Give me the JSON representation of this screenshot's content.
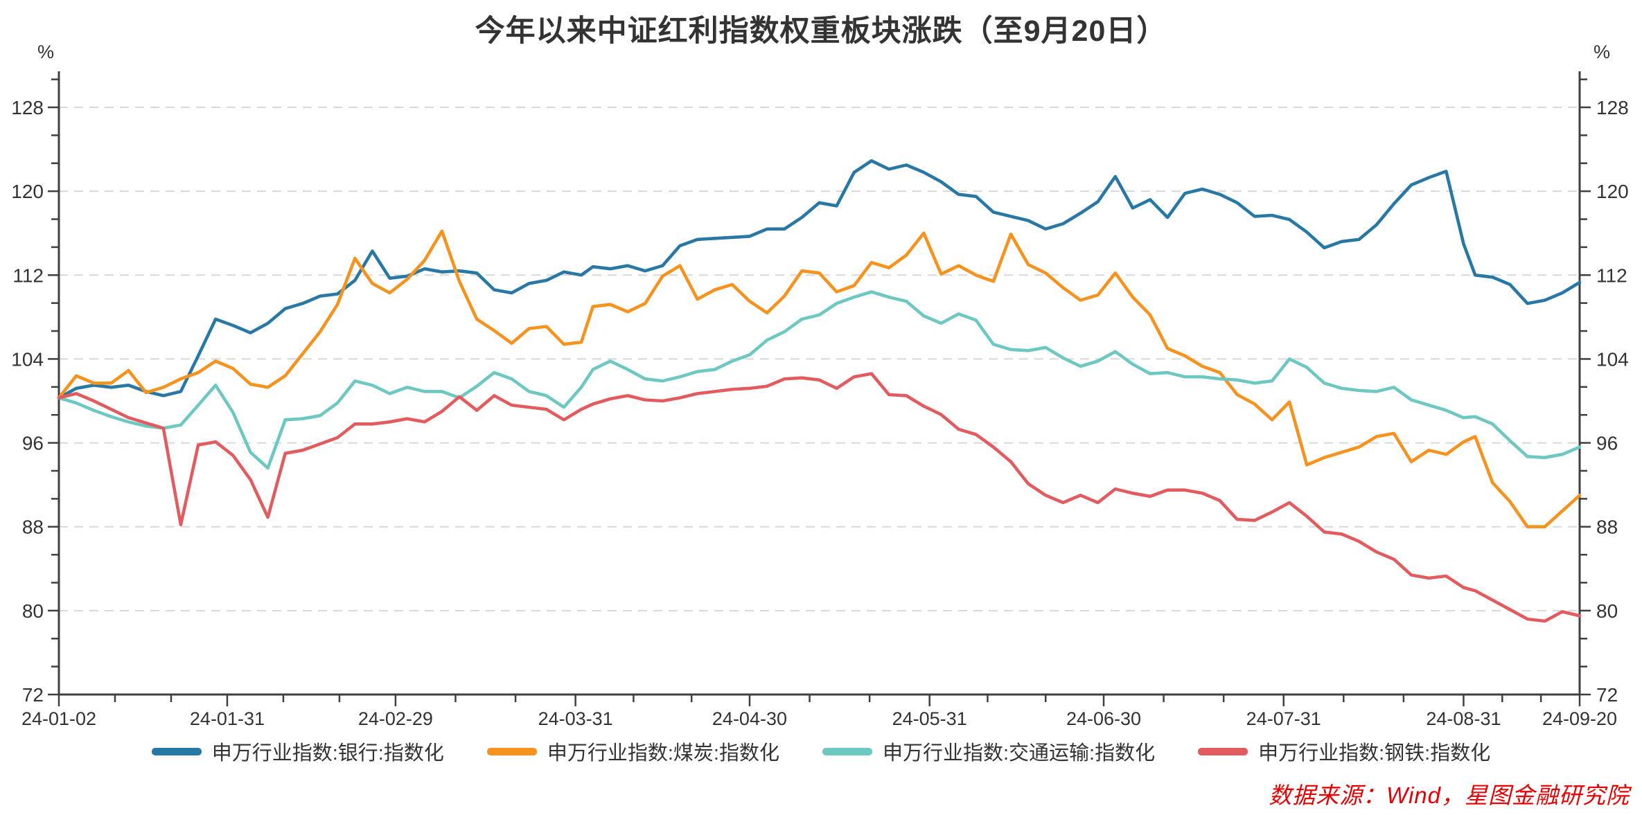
{
  "title": "今年以来中证红利指数权重板块涨跌（至9月20日）",
  "source_note": "数据来源：Wind，星图金融研究院",
  "chart_data": {
    "type": "line",
    "title": "今年以来中证红利指数权重板块涨跌（至9月20日）",
    "ylabel": "%",
    "unit_label": "%",
    "ylim": [
      72,
      131.5
    ],
    "y_ticks": [
      128,
      120,
      112,
      104,
      96,
      88,
      80,
      72
    ],
    "grid": "horizontal-dashed",
    "legend_position": "bottom",
    "x_tick_labels": [
      "24-01-02",
      "24-01-31",
      "24-02-29",
      "24-03-31",
      "24-04-30",
      "24-05-31",
      "24-06-30",
      "24-07-31",
      "24-08-31",
      "24-09-20"
    ],
    "x": [
      "24-01-02",
      "24-01-05",
      "24-01-08",
      "24-01-11",
      "24-01-14",
      "24-01-17",
      "24-01-20",
      "24-01-23",
      "24-01-26",
      "24-01-29",
      "24-02-01",
      "24-02-04",
      "24-02-07",
      "24-02-10",
      "24-02-13",
      "24-02-16",
      "24-02-19",
      "24-02-22",
      "24-02-25",
      "24-02-28",
      "24-03-02",
      "24-03-05",
      "24-03-08",
      "24-03-11",
      "24-03-14",
      "24-03-17",
      "24-03-20",
      "24-03-23",
      "24-03-26",
      "24-03-29",
      "24-04-01",
      "24-04-03",
      "24-04-06",
      "24-04-09",
      "24-04-12",
      "24-04-15",
      "24-04-18",
      "24-04-21",
      "24-04-24",
      "24-04-27",
      "24-04-30",
      "24-05-03",
      "24-05-06",
      "24-05-09",
      "24-05-12",
      "24-05-15",
      "24-05-18",
      "24-05-21",
      "24-05-24",
      "24-05-27",
      "24-05-30",
      "24-06-02",
      "24-06-05",
      "24-06-08",
      "24-06-11",
      "24-06-14",
      "24-06-17",
      "24-06-20",
      "24-06-23",
      "24-06-26",
      "24-06-29",
      "24-07-02",
      "24-07-05",
      "24-07-08",
      "24-07-11",
      "24-07-14",
      "24-07-17",
      "24-07-20",
      "24-07-23",
      "24-07-26",
      "24-07-29",
      "24-08-01",
      "24-08-04",
      "24-08-07",
      "24-08-10",
      "24-08-13",
      "24-08-16",
      "24-08-19",
      "24-08-22",
      "24-08-25",
      "24-08-28",
      "24-08-31",
      "24-09-02",
      "24-09-05",
      "24-09-08",
      "24-09-11",
      "24-09-14",
      "24-09-17",
      "24-09-20"
    ],
    "series": [
      {
        "name": "申万行业指数:银行:指数化",
        "color": "#2878A6",
        "values": [
          100.3,
          101.2,
          101.5,
          101.3,
          101.5,
          100.9,
          100.5,
          100.9,
          104.3,
          107.8,
          107.2,
          106.5,
          107.4,
          108.8,
          109.3,
          110.0,
          110.2,
          111.5,
          114.3,
          111.7,
          111.9,
          112.6,
          112.3,
          112.4,
          112.2,
          110.6,
          110.3,
          111.2,
          111.5,
          112.3,
          112.0,
          112.8,
          112.6,
          112.9,
          112.4,
          112.9,
          114.8,
          115.4,
          115.5,
          115.6,
          115.7,
          116.4,
          116.4,
          117.5,
          118.9,
          118.6,
          121.8,
          122.9,
          122.1,
          122.5,
          121.8,
          120.9,
          119.7,
          119.5,
          118.0,
          117.6,
          117.2,
          116.4,
          116.9,
          117.9,
          119.0,
          121.4,
          118.4,
          119.2,
          117.5,
          119.8,
          120.2,
          119.7,
          118.9,
          117.6,
          117.7,
          117.3,
          116.1,
          114.6,
          115.2,
          115.4,
          116.8,
          118.8,
          120.6,
          121.3,
          121.9,
          115.0,
          112.0,
          111.8,
          111.1,
          109.3,
          109.6,
          110.3,
          111.3
        ]
      },
      {
        "name": "申万行业指数:煤炭:指数化",
        "color": "#F6921E",
        "values": [
          100.3,
          102.4,
          101.7,
          101.7,
          102.9,
          100.8,
          101.3,
          102.1,
          102.7,
          103.8,
          103.1,
          101.6,
          101.3,
          102.4,
          104.5,
          106.6,
          109.2,
          113.6,
          111.2,
          110.3,
          111.6,
          113.4,
          116.2,
          111.4,
          107.8,
          106.7,
          105.5,
          106.9,
          107.1,
          105.4,
          105.6,
          109.0,
          109.2,
          108.5,
          109.3,
          111.9,
          112.9,
          109.7,
          110.6,
          111.1,
          109.5,
          108.4,
          110.0,
          112.4,
          112.2,
          110.4,
          111.0,
          113.2,
          112.7,
          113.9,
          116.0,
          112.1,
          112.9,
          112.0,
          111.4,
          115.9,
          113.0,
          112.2,
          110.8,
          109.6,
          110.1,
          112.2,
          109.9,
          108.2,
          105.0,
          104.3,
          103.3,
          102.7,
          100.6,
          99.7,
          98.2,
          99.9,
          93.9,
          94.6,
          95.1,
          95.6,
          96.6,
          96.9,
          94.2,
          95.3,
          94.9,
          96.1,
          96.6,
          92.2,
          90.4,
          88.0,
          88.0,
          89.5,
          91.0
        ]
      },
      {
        "name": "申万行业指数:交通运输:指数化",
        "color": "#6EC8C2",
        "values": [
          100.3,
          99.8,
          99.1,
          98.5,
          98.0,
          97.6,
          97.4,
          97.7,
          99.6,
          101.5,
          98.9,
          95.1,
          93.6,
          98.2,
          98.3,
          98.6,
          99.8,
          101.9,
          101.5,
          100.7,
          101.3,
          100.9,
          100.9,
          100.3,
          101.4,
          102.7,
          102.1,
          100.9,
          100.5,
          99.4,
          101.3,
          103.0,
          103.8,
          103.0,
          102.1,
          101.9,
          102.3,
          102.8,
          103.0,
          103.8,
          104.4,
          105.8,
          106.6,
          107.8,
          108.2,
          109.3,
          109.9,
          110.4,
          109.9,
          109.5,
          108.1,
          107.4,
          108.3,
          107.7,
          105.4,
          104.9,
          104.8,
          105.1,
          104.1,
          103.3,
          103.8,
          104.7,
          103.5,
          102.6,
          102.7,
          102.3,
          102.3,
          102.1,
          102.0,
          101.7,
          101.9,
          104.0,
          103.2,
          101.7,
          101.2,
          101.0,
          100.9,
          101.3,
          100.1,
          99.6,
          99.1,
          98.4,
          98.5,
          97.8,
          96.2,
          94.7,
          94.6,
          94.9,
          95.6
        ]
      },
      {
        "name": "申万行业指数:钢铁:指数化",
        "color": "#E25C5F",
        "values": [
          100.3,
          100.7,
          100.0,
          99.2,
          98.4,
          97.9,
          97.4,
          88.2,
          95.8,
          96.1,
          94.8,
          92.5,
          88.9,
          95.0,
          95.3,
          95.9,
          96.5,
          97.8,
          97.8,
          98.0,
          98.3,
          98.0,
          99.0,
          100.4,
          99.1,
          100.5,
          99.6,
          99.4,
          99.2,
          98.2,
          99.2,
          99.7,
          100.2,
          100.5,
          100.1,
          100.0,
          100.3,
          100.7,
          100.9,
          101.1,
          101.2,
          101.4,
          102.1,
          102.2,
          102.0,
          101.2,
          102.3,
          102.6,
          100.6,
          100.5,
          99.5,
          98.7,
          97.3,
          96.8,
          95.6,
          94.2,
          92.1,
          91.0,
          90.3,
          91.0,
          90.3,
          91.6,
          91.2,
          90.9,
          91.5,
          91.5,
          91.2,
          90.5,
          88.7,
          88.6,
          89.4,
          90.3,
          89.0,
          87.5,
          87.3,
          86.6,
          85.6,
          84.9,
          83.4,
          83.1,
          83.3,
          82.2,
          81.9,
          81.0,
          80.1,
          79.2,
          79.0,
          79.9,
          79.5
        ]
      }
    ],
    "styles": {
      "grid_color": "#d8d8d8",
      "axis_color": "#3f3f3f",
      "label_color": "#333333",
      "title_color": "#333333",
      "source_color": "#e60000"
    }
  }
}
